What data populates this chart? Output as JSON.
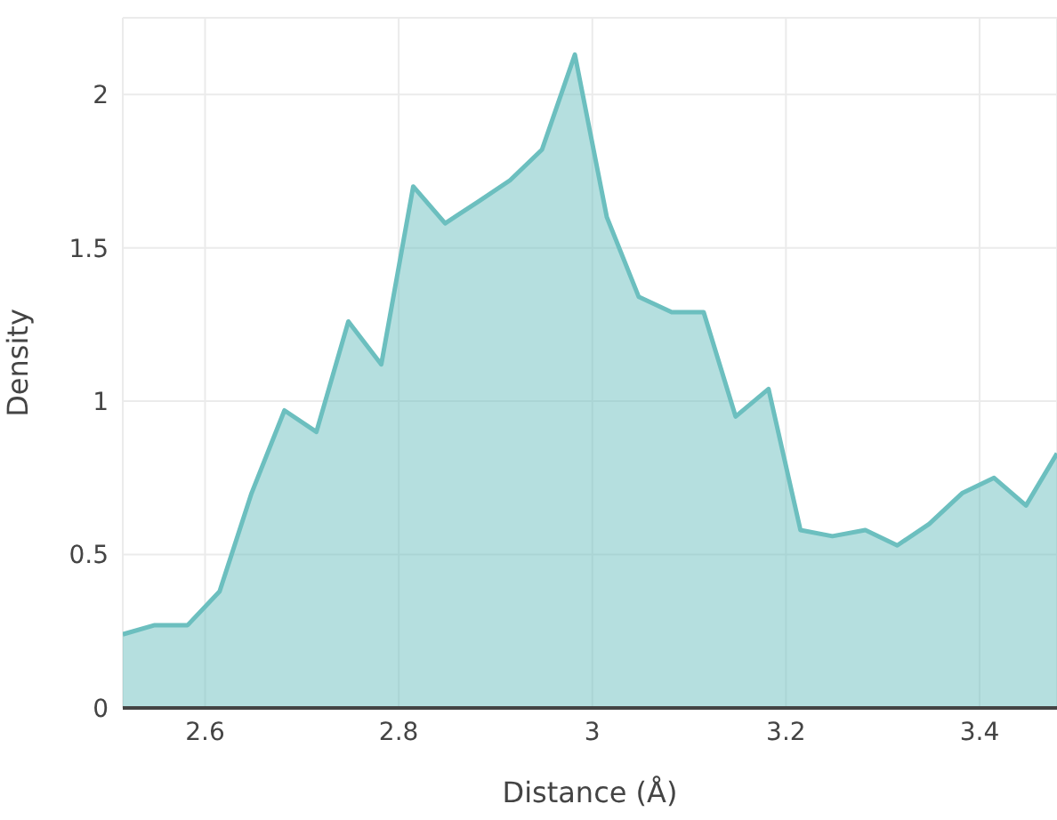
{
  "chart_data": {
    "type": "area",
    "xlabel": "Distance (Å)",
    "ylabel": "Density",
    "x": [
      2.515,
      2.548,
      2.582,
      2.615,
      2.648,
      2.682,
      2.715,
      2.748,
      2.782,
      2.815,
      2.848,
      2.882,
      2.915,
      2.948,
      2.982,
      3.015,
      3.048,
      3.082,
      3.115,
      3.148,
      3.182,
      3.215,
      3.248,
      3.282,
      3.315,
      3.348,
      3.382,
      3.415,
      3.448,
      3.48
    ],
    "series": [
      {
        "color": "#6cbfbf",
        "values": [
          0.24,
          0.27,
          0.27,
          0.38,
          0.7,
          0.97,
          0.9,
          1.26,
          1.12,
          1.7,
          1.58,
          1.65,
          1.72,
          1.82,
          2.13,
          1.6,
          1.34,
          1.29,
          1.29,
          0.95,
          1.04,
          0.58,
          0.56,
          0.58,
          0.53,
          0.6,
          0.7,
          0.75,
          0.66,
          0.83
        ]
      }
    ],
    "xlim": [
      2.515,
      3.48
    ],
    "xticks": [
      2.6,
      2.8,
      3,
      3.2,
      3.4
    ],
    "ylim": [
      0,
      2.25
    ],
    "yticks": [
      0,
      0.5,
      1,
      1.5,
      2
    ],
    "grid": true,
    "legend": false
  }
}
